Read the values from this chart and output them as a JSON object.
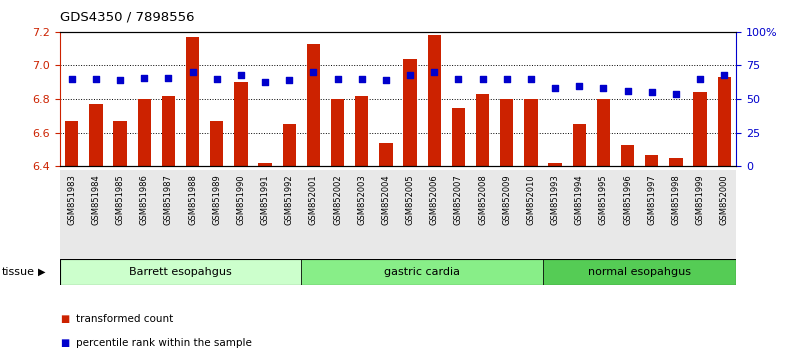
{
  "title": "GDS4350 / 7898556",
  "samples": [
    "GSM851983",
    "GSM851984",
    "GSM851985",
    "GSM851986",
    "GSM851987",
    "GSM851988",
    "GSM851989",
    "GSM851990",
    "GSM851991",
    "GSM851992",
    "GSM852001",
    "GSM852002",
    "GSM852003",
    "GSM852004",
    "GSM852005",
    "GSM852006",
    "GSM852007",
    "GSM852008",
    "GSM852009",
    "GSM852010",
    "GSM851993",
    "GSM851994",
    "GSM851995",
    "GSM851996",
    "GSM851997",
    "GSM851998",
    "GSM851999",
    "GSM852000"
  ],
  "bar_values": [
    6.67,
    6.77,
    6.67,
    6.8,
    6.82,
    7.17,
    6.67,
    6.9,
    6.42,
    6.65,
    7.13,
    6.8,
    6.82,
    6.54,
    7.04,
    7.18,
    6.75,
    6.83,
    6.8,
    6.8,
    6.42,
    6.65,
    6.8,
    6.53,
    6.47,
    6.45,
    6.84,
    6.93
  ],
  "percentile_values": [
    65,
    65,
    64,
    66,
    66,
    70,
    65,
    68,
    63,
    64,
    70,
    65,
    65,
    64,
    68,
    70,
    65,
    65,
    65,
    65,
    58,
    60,
    58,
    56,
    55,
    54,
    65,
    68
  ],
  "groups": [
    {
      "label": "Barrett esopahgus",
      "start": 0,
      "end": 9,
      "color": "#ccffcc"
    },
    {
      "label": "gastric cardia",
      "start": 10,
      "end": 19,
      "color": "#88ee88"
    },
    {
      "label": "normal esopahgus",
      "start": 20,
      "end": 27,
      "color": "#55cc55"
    }
  ],
  "ylim_left": [
    6.4,
    7.2
  ],
  "ylim_right": [
    0,
    100
  ],
  "bar_color": "#cc2200",
  "dot_color": "#0000cc",
  "tick_color_left": "#cc2200",
  "tick_color_right": "#0000cc",
  "legend_items": [
    {
      "label": "transformed count",
      "color": "#cc2200"
    },
    {
      "label": "percentile rank within the sample",
      "color": "#0000cc"
    }
  ],
  "tissue_label": "tissue"
}
